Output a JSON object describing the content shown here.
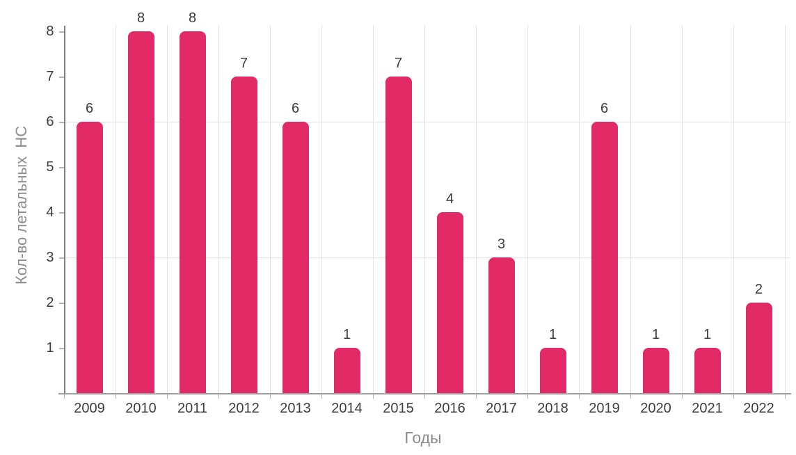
{
  "chart_data": {
    "type": "bar",
    "title": "",
    "categories": [
      "2009",
      "2010",
      "2011",
      "2012",
      "2013",
      "2014",
      "2015",
      "2016",
      "2017",
      "2018",
      "2019",
      "2020",
      "2021",
      "2022"
    ],
    "values": [
      6,
      8,
      8,
      7,
      6,
      1,
      7,
      4,
      3,
      1,
      6,
      1,
      1,
      2
    ],
    "xlabel": "Годы",
    "ylabel": "Кол-во летальных  НС",
    "ylim": [
      0,
      8
    ],
    "yticks": [
      "1",
      "2",
      "3",
      "4",
      "5",
      "6",
      "7",
      "8"
    ],
    "hgridlines_at_values": [
      3,
      6
    ],
    "vgridlines": "category-boundaries",
    "legend": "none",
    "data_labels_shown": true
  },
  "colors": {
    "bar": "#e12a66",
    "data_label": "#3c3c3c",
    "tick_label": "#3d3d3d",
    "axis_title": "#8c8c8c",
    "x_axis_line": "#9e9e9e",
    "y_axis_line": "#7d7d7d",
    "gridline": "#e3e3e3",
    "tick_mark": "#b2b2b2",
    "background": "#ffffff"
  }
}
